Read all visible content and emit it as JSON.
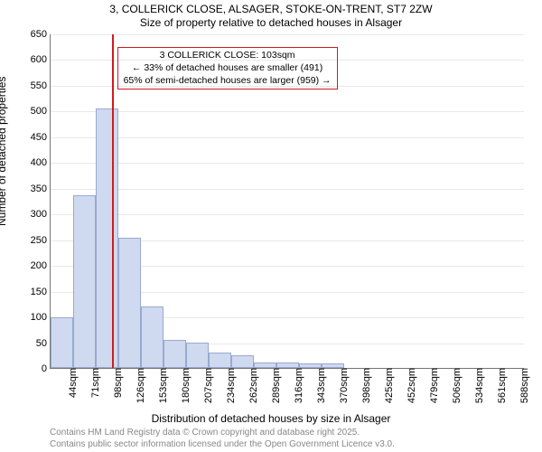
{
  "title_line1": "3, COLLERICK CLOSE, ALSAGER, STOKE-ON-TRENT, ST7 2ZW",
  "title_line2": "Size of property relative to detached houses in Alsager",
  "ylabel": "Number of detached properties",
  "xlabel": "Distribution of detached houses by size in Alsager",
  "footnote1": "Contains HM Land Registry data © Crown copyright and database right 2025.",
  "footnote2": "Contains public sector information licensed under the Open Government Licence v3.0.",
  "annotation_line1": "3 COLLERICK CLOSE: 103sqm",
  "annotation_line2": "← 33% of detached houses are smaller (491)",
  "annotation_line3": "65% of semi-detached houses are larger (959) →",
  "annotation_border_color": "#d01c1c",
  "marker_x_value": 103,
  "marker_color": "#d01c1c",
  "chart": {
    "type": "histogram",
    "background_color": "#ffffff",
    "grid_color": "#e8e8e8",
    "axis_color": "#757575",
    "bar_fill": "#cfd9ef",
    "bar_stroke": "#9aa9d0",
    "ylim": [
      0,
      650
    ],
    "ytick_step": 50,
    "x_bin_start": 30,
    "x_bin_width": 27,
    "x_tick_labels": [
      "44sqm",
      "71sqm",
      "98sqm",
      "126sqm",
      "153sqm",
      "180sqm",
      "207sqm",
      "234sqm",
      "262sqm",
      "289sqm",
      "316sqm",
      "343sqm",
      "370sqm",
      "398sqm",
      "425sqm",
      "452sqm",
      "479sqm",
      "506sqm",
      "534sqm",
      "561sqm",
      "588sqm"
    ],
    "bar_values": [
      98,
      335,
      505,
      253,
      120,
      55,
      50,
      30,
      25,
      10,
      10,
      8,
      8,
      0,
      0,
      0,
      0,
      0,
      0,
      0,
      0
    ],
    "label_fontsize": 12,
    "tick_fontsize": 11,
    "title_fontsize": 12,
    "annotation_fontsize": 10.5
  }
}
